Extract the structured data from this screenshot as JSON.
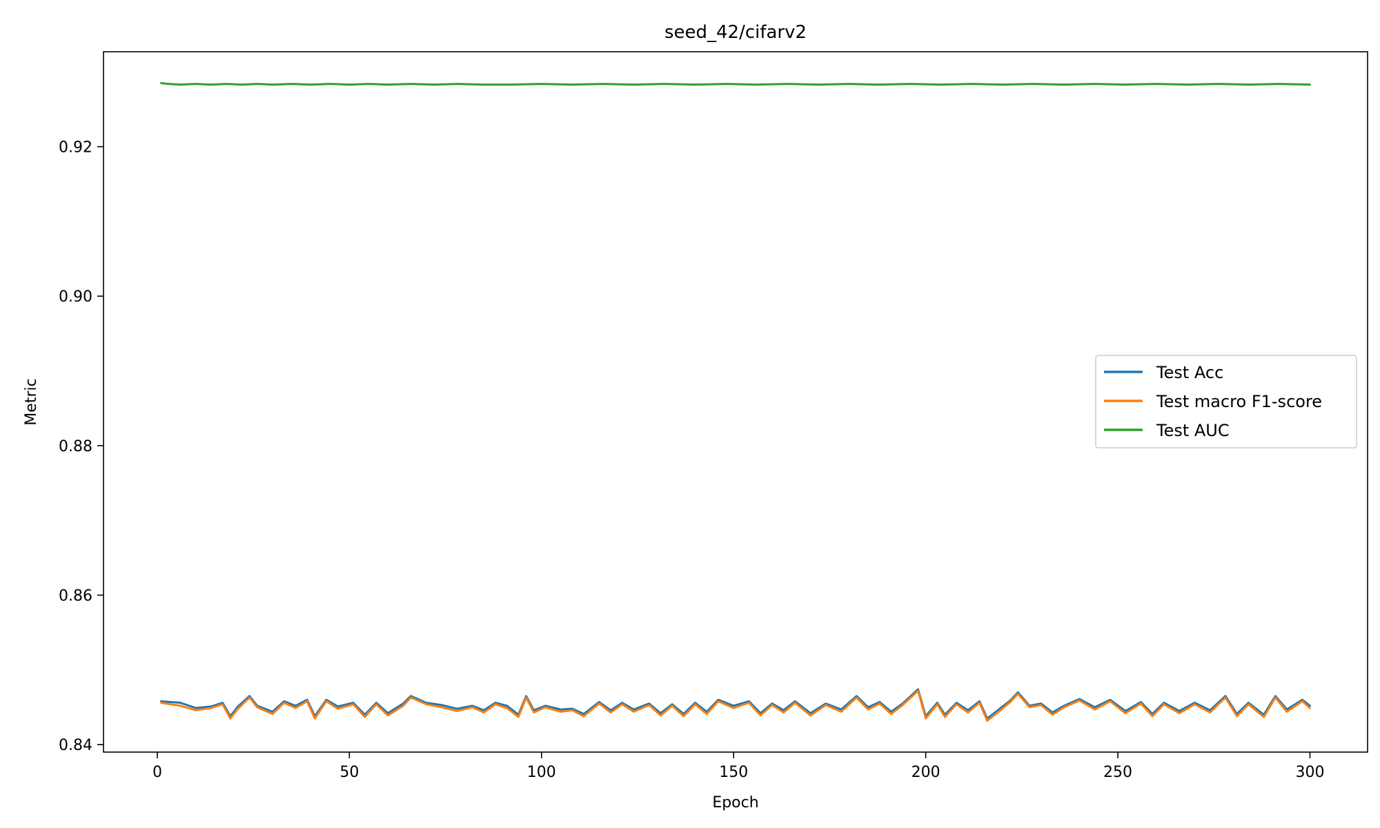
{
  "chart_data": {
    "type": "line",
    "title": "seed_42/cifarv2",
    "xlabel": "Epoch",
    "ylabel": "Metric",
    "xlim": [
      -14,
      315
    ],
    "ylim": [
      0.839,
      0.9327
    ],
    "xticks": [
      0,
      50,
      100,
      150,
      200,
      250,
      300
    ],
    "xtick_labels": [
      "0",
      "50",
      "100",
      "150",
      "200",
      "250",
      "300"
    ],
    "yticks": [
      0.84,
      0.86,
      0.88,
      0.9,
      0.92
    ],
    "ytick_labels": [
      "0.84",
      "0.86",
      "0.88",
      "0.90",
      "0.92"
    ],
    "grid": false,
    "legend_position": "center-right",
    "series": [
      {
        "name": "Test Acc",
        "color": "#1f77b4",
        "x": [
          1,
          6,
          10,
          14,
          17,
          19,
          21,
          24,
          26,
          30,
          33,
          36,
          39,
          41,
          44,
          47,
          51,
          54,
          57,
          60,
          64,
          66,
          70,
          74,
          78,
          82,
          85,
          88,
          91,
          94,
          96,
          98,
          101,
          105,
          108,
          111,
          115,
          118,
          121,
          124,
          128,
          131,
          134,
          137,
          140,
          143,
          146,
          150,
          154,
          157,
          160,
          163,
          166,
          170,
          174,
          178,
          182,
          185,
          188,
          191,
          194,
          198,
          200,
          203,
          205,
          208,
          211,
          214,
          216,
          219,
          222,
          224,
          227,
          230,
          233,
          236,
          240,
          244,
          248,
          252,
          256,
          259,
          262,
          266,
          270,
          274,
          278,
          281,
          284,
          288,
          291,
          294,
          298,
          300
        ],
        "y": [
          0.8458,
          0.8456,
          0.8449,
          0.8451,
          0.8456,
          0.8438,
          0.8451,
          0.8465,
          0.8452,
          0.8444,
          0.8458,
          0.8452,
          0.846,
          0.8438,
          0.846,
          0.8451,
          0.8456,
          0.844,
          0.8456,
          0.8442,
          0.8455,
          0.8465,
          0.8456,
          0.8453,
          0.8448,
          0.8452,
          0.8446,
          0.8456,
          0.8452,
          0.844,
          0.8465,
          0.8446,
          0.8452,
          0.8447,
          0.8448,
          0.8441,
          0.8457,
          0.8446,
          0.8456,
          0.8447,
          0.8455,
          0.8442,
          0.8454,
          0.8441,
          0.8456,
          0.8444,
          0.846,
          0.8452,
          0.8458,
          0.8442,
          0.8455,
          0.8446,
          0.8458,
          0.8442,
          0.8455,
          0.8447,
          0.8465,
          0.845,
          0.8457,
          0.8444,
          0.8455,
          0.8474,
          0.8438,
          0.8456,
          0.844,
          0.8456,
          0.8446,
          0.8458,
          0.8435,
          0.8447,
          0.8459,
          0.847,
          0.8452,
          0.8455,
          0.8443,
          0.8452,
          0.8461,
          0.845,
          0.846,
          0.8445,
          0.8457,
          0.8441,
          0.8456,
          0.8445,
          0.8456,
          0.8446,
          0.8465,
          0.8441,
          0.8456,
          0.844,
          0.8465,
          0.8447,
          0.846,
          0.8452
        ]
      },
      {
        "name": "Test macro F1-score",
        "color": "#ff7f0e",
        "x": [
          1,
          6,
          10,
          14,
          17,
          19,
          21,
          24,
          26,
          30,
          33,
          36,
          39,
          41,
          44,
          47,
          51,
          54,
          57,
          60,
          64,
          66,
          70,
          74,
          78,
          82,
          85,
          88,
          91,
          94,
          96,
          98,
          101,
          105,
          108,
          111,
          115,
          118,
          121,
          124,
          128,
          131,
          134,
          137,
          140,
          143,
          146,
          150,
          154,
          157,
          160,
          163,
          166,
          170,
          174,
          178,
          182,
          185,
          188,
          191,
          194,
          198,
          200,
          203,
          205,
          208,
          211,
          214,
          216,
          219,
          222,
          224,
          227,
          230,
          233,
          236,
          240,
          244,
          248,
          252,
          256,
          259,
          262,
          266,
          270,
          274,
          278,
          281,
          284,
          288,
          291,
          294,
          298,
          300
        ],
        "y": [
          0.8456,
          0.8452,
          0.8446,
          0.8449,
          0.8454,
          0.8435,
          0.8448,
          0.8463,
          0.845,
          0.8441,
          0.8456,
          0.8449,
          0.8458,
          0.8435,
          0.8458,
          0.8448,
          0.8454,
          0.8437,
          0.8454,
          0.8439,
          0.8452,
          0.8463,
          0.8454,
          0.845,
          0.8445,
          0.845,
          0.8443,
          0.8454,
          0.8449,
          0.8437,
          0.8463,
          0.8443,
          0.845,
          0.8444,
          0.8446,
          0.8438,
          0.8455,
          0.8443,
          0.8454,
          0.8444,
          0.8453,
          0.8439,
          0.8452,
          0.8438,
          0.8454,
          0.8441,
          0.8458,
          0.8449,
          0.8456,
          0.8439,
          0.8453,
          0.8443,
          0.8456,
          0.8439,
          0.8453,
          0.8444,
          0.8463,
          0.8447,
          0.8455,
          0.8441,
          0.8453,
          0.8472,
          0.8435,
          0.8454,
          0.8437,
          0.8454,
          0.8443,
          0.8456,
          0.8432,
          0.8444,
          0.8457,
          0.8468,
          0.845,
          0.8453,
          0.844,
          0.845,
          0.8459,
          0.8447,
          0.8458,
          0.8442,
          0.8455,
          0.8438,
          0.8454,
          0.8442,
          0.8454,
          0.8443,
          0.8463,
          0.8438,
          0.8454,
          0.8437,
          0.8463,
          0.8444,
          0.8458,
          0.8449
        ]
      },
      {
        "name": "Test AUC",
        "color": "#2ca02c",
        "x": [
          1,
          3,
          6,
          10,
          14,
          18,
          22,
          26,
          30,
          35,
          40,
          45,
          50,
          55,
          60,
          66,
          72,
          78,
          85,
          92,
          100,
          108,
          116,
          124,
          132,
          140,
          148,
          156,
          164,
          172,
          180,
          188,
          196,
          204,
          212,
          220,
          228,
          236,
          244,
          252,
          260,
          268,
          276,
          284,
          292,
          300
        ],
        "y": [
          0.9285,
          0.9284,
          0.9283,
          0.9284,
          0.9283,
          0.9284,
          0.9283,
          0.9284,
          0.9283,
          0.9284,
          0.9283,
          0.9284,
          0.9283,
          0.9284,
          0.9283,
          0.9284,
          0.9283,
          0.9284,
          0.9283,
          0.9283,
          0.9284,
          0.9283,
          0.9284,
          0.9283,
          0.9284,
          0.9283,
          0.9284,
          0.9283,
          0.9284,
          0.9283,
          0.9284,
          0.9283,
          0.9284,
          0.9283,
          0.9284,
          0.9283,
          0.9284,
          0.9283,
          0.9284,
          0.9283,
          0.9284,
          0.9283,
          0.9284,
          0.9283,
          0.9284,
          0.9283
        ]
      }
    ]
  }
}
